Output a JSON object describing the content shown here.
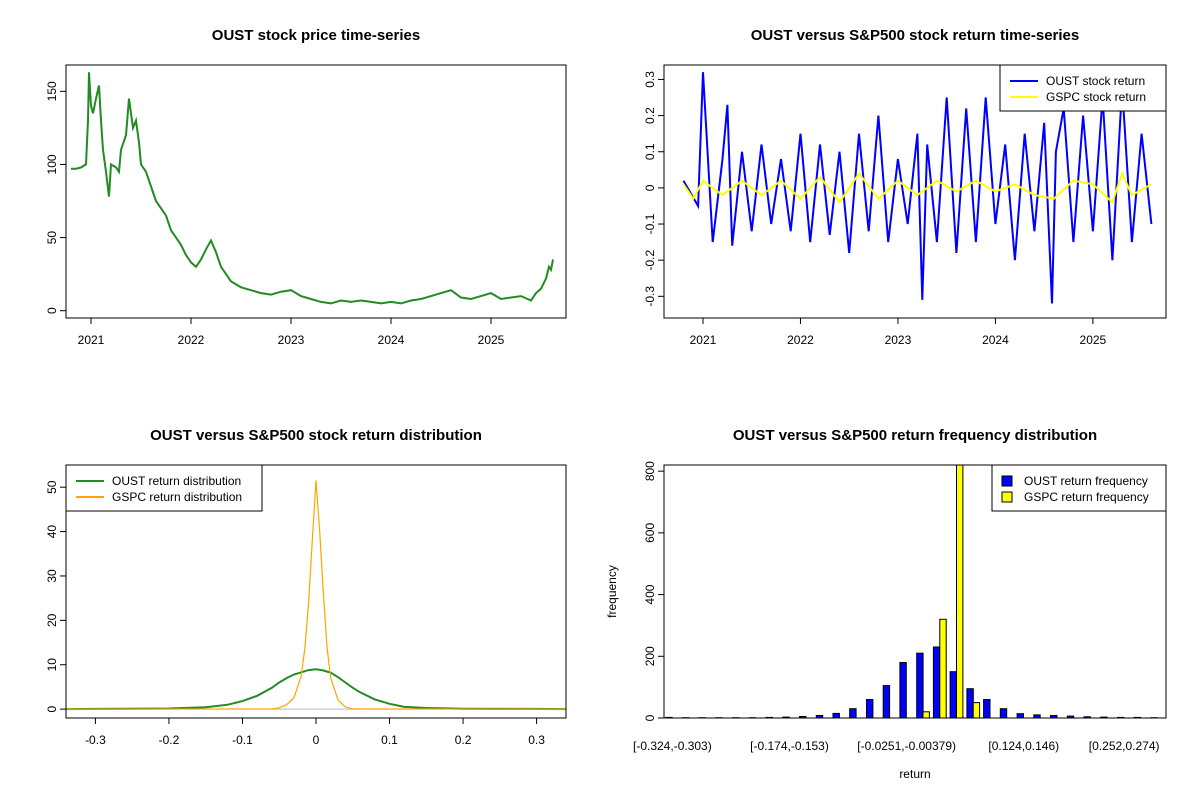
{
  "chart_data": [
    {
      "type": "line",
      "title": "OUST stock price time-series",
      "xlabel": "",
      "ylabel": "",
      "xlim": [
        2020.75,
        2025.75
      ],
      "ylim": [
        -5,
        168
      ],
      "x_ticks": [
        2021,
        2022,
        2023,
        2024,
        2025
      ],
      "y_ticks": [
        0,
        50,
        100,
        150
      ],
      "grid": false,
      "legend": "none",
      "series": [
        {
          "color": "#228B22",
          "x": [
            2020.8,
            2020.85,
            2020.9,
            2020.95,
            2020.97,
            2020.98,
            2021.0,
            2021.02,
            2021.05,
            2021.08,
            2021.1,
            2021.12,
            2021.15,
            2021.18,
            2021.2,
            2021.25,
            2021.28,
            2021.3,
            2021.35,
            2021.38,
            2021.42,
            2021.45,
            2021.48,
            2021.5,
            2021.55,
            2021.6,
            2021.65,
            2021.7,
            2021.75,
            2021.8,
            2021.85,
            2021.9,
            2021.95,
            2022.0,
            2022.05,
            2022.1,
            2022.15,
            2022.2,
            2022.25,
            2022.3,
            2022.35,
            2022.4,
            2022.45,
            2022.5,
            2022.6,
            2022.7,
            2022.8,
            2022.9,
            2023.0,
            2023.1,
            2023.2,
            2023.3,
            2023.4,
            2023.5,
            2023.6,
            2023.7,
            2023.8,
            2023.9,
            2024.0,
            2024.1,
            2024.2,
            2024.3,
            2024.4,
            2024.5,
            2024.6,
            2024.7,
            2024.8,
            2024.9,
            2025.0,
            2025.1,
            2025.2,
            2025.3,
            2025.4,
            2025.45,
            2025.5,
            2025.55,
            2025.58,
            2025.6,
            2025.62
          ],
          "y": [
            97,
            97,
            98,
            100,
            130,
            163,
            140,
            135,
            145,
            154,
            130,
            110,
            95,
            78,
            100,
            98,
            95,
            110,
            120,
            145,
            125,
            130,
            115,
            100,
            95,
            85,
            75,
            70,
            65,
            55,
            50,
            45,
            38,
            33,
            30,
            35,
            42,
            48,
            40,
            30,
            25,
            20,
            18,
            16,
            14,
            12,
            11,
            13,
            14,
            10,
            8,
            6,
            5,
            7,
            6,
            7,
            6,
            5,
            6,
            5,
            7,
            8,
            10,
            12,
            14,
            9,
            8,
            10,
            12,
            8,
            9,
            10,
            7,
            12,
            15,
            22,
            30,
            28,
            35
          ]
        }
      ]
    },
    {
      "type": "line",
      "title": "OUST versus S&P500 stock return time-series",
      "xlabel": "",
      "ylabel": "",
      "xlim": [
        2020.6,
        2025.75
      ],
      "ylim": [
        -0.36,
        0.34
      ],
      "x_ticks": [
        2021,
        2022,
        2023,
        2024,
        2025
      ],
      "y_ticks": [
        -0.3,
        -0.2,
        -0.1,
        0.0,
        0.1,
        0.2,
        0.3
      ],
      "grid": false,
      "legend": "top-right",
      "series": [
        {
          "name": "OUST stock return",
          "color": "#0000FF",
          "x": [
            2020.8,
            2020.95,
            2021.0,
            2021.1,
            2021.2,
            2021.25,
            2021.3,
            2021.4,
            2021.5,
            2021.6,
            2021.7,
            2021.8,
            2021.9,
            2022.0,
            2022.1,
            2022.2,
            2022.3,
            2022.4,
            2022.5,
            2022.6,
            2022.7,
            2022.8,
            2022.9,
            2023.0,
            2023.1,
            2023.2,
            2023.25,
            2023.3,
            2023.4,
            2023.5,
            2023.6,
            2023.7,
            2023.8,
            2023.9,
            2024.0,
            2024.1,
            2024.2,
            2024.3,
            2024.4,
            2024.5,
            2024.58,
            2024.62,
            2024.7,
            2024.8,
            2024.9,
            2025.0,
            2025.1,
            2025.2,
            2025.3,
            2025.4,
            2025.5,
            2025.6
          ],
          "y": [
            0.02,
            -0.05,
            0.32,
            -0.15,
            0.08,
            0.23,
            -0.16,
            0.1,
            -0.12,
            0.12,
            -0.1,
            0.08,
            -0.12,
            0.15,
            -0.15,
            0.12,
            -0.13,
            0.1,
            -0.18,
            0.15,
            -0.12,
            0.2,
            -0.15,
            0.08,
            -0.1,
            0.15,
            -0.31,
            0.12,
            -0.15,
            0.25,
            -0.18,
            0.22,
            -0.15,
            0.25,
            -0.1,
            0.12,
            -0.2,
            0.15,
            -0.12,
            0.18,
            -0.32,
            0.1,
            0.22,
            -0.15,
            0.2,
            -0.12,
            0.25,
            -0.2,
            0.28,
            -0.15,
            0.15,
            -0.1
          ]
        },
        {
          "name": "GSPC stock return",
          "color": "#FFFF00",
          "x": [
            2020.8,
            2020.9,
            2021.0,
            2021.2,
            2021.4,
            2021.6,
            2021.8,
            2022.0,
            2022.2,
            2022.4,
            2022.6,
            2022.8,
            2023.0,
            2023.2,
            2023.4,
            2023.6,
            2023.8,
            2024.0,
            2024.2,
            2024.4,
            2024.6,
            2024.8,
            2025.0,
            2025.2,
            2025.3,
            2025.4,
            2025.6
          ],
          "y": [
            0.01,
            -0.03,
            0.02,
            -0.02,
            0.02,
            -0.02,
            0.02,
            -0.03,
            0.03,
            -0.04,
            0.04,
            -0.03,
            0.02,
            -0.02,
            0.02,
            -0.01,
            0.02,
            -0.01,
            0.01,
            -0.02,
            -0.03,
            0.02,
            0.01,
            -0.04,
            0.04,
            -0.02,
            0.01
          ]
        }
      ]
    },
    {
      "type": "line",
      "title": "OUST versus S&P500 stock return distribution",
      "xlabel": "",
      "ylabel": "",
      "xlim": [
        -0.34,
        0.34
      ],
      "ylim": [
        -2,
        55
      ],
      "x_ticks": [
        -0.3,
        -0.2,
        -0.1,
        0.0,
        0.1,
        0.2,
        0.3
      ],
      "y_ticks": [
        0,
        10,
        20,
        30,
        40,
        50
      ],
      "grid": false,
      "legend": "top-left",
      "series": [
        {
          "name": "OUST return distribution",
          "color": "#228B22",
          "x": [
            -0.34,
            -0.3,
            -0.2,
            -0.15,
            -0.12,
            -0.1,
            -0.08,
            -0.06,
            -0.05,
            -0.04,
            -0.03,
            -0.02,
            -0.01,
            0.0,
            0.01,
            0.02,
            0.03,
            0.04,
            0.05,
            0.06,
            0.08,
            0.1,
            0.12,
            0.15,
            0.2,
            0.3,
            0.34
          ],
          "y": [
            0,
            0.05,
            0.15,
            0.4,
            1.0,
            1.8,
            3.0,
            4.8,
            6.0,
            7.0,
            7.8,
            8.3,
            8.8,
            9.0,
            8.7,
            8.2,
            7.2,
            6.0,
            4.8,
            3.8,
            2.2,
            1.2,
            0.5,
            0.25,
            0.1,
            0.05,
            0
          ]
        },
        {
          "name": "GSPC return distribution",
          "color": "#FFA500",
          "x": [
            -0.34,
            -0.06,
            -0.05,
            -0.04,
            -0.03,
            -0.02,
            -0.015,
            -0.01,
            -0.005,
            0.0,
            0.005,
            0.01,
            0.015,
            0.02,
            0.03,
            0.04,
            0.05,
            0.34
          ],
          "y": [
            0,
            0.05,
            0.3,
            1.0,
            2.5,
            7.5,
            14,
            24,
            38,
            51.5,
            40,
            26,
            14,
            7,
            2.0,
            0.5,
            0.05,
            0
          ]
        }
      ]
    },
    {
      "type": "bar",
      "title": "OUST versus S&P500 return frequency distribution",
      "xlabel": "return",
      "ylabel": "frequency",
      "ylim": [
        0,
        820
      ],
      "y_ticks": [
        0,
        200,
        400,
        600,
        800
      ],
      "x_tick_labels": [
        "[-0.324,-0.303)",
        "[-0.174,-0.153)",
        "[-0.0251,-0.00379)",
        "[0.124,0.146)",
        "[0.252,0.274)"
      ],
      "x_tick_label_positions": [
        0,
        7,
        14,
        21,
        27
      ],
      "bin_count": 30,
      "grid": false,
      "legend": "top-right",
      "series": [
        {
          "name": "OUST return frequency",
          "color": "#0000FF",
          "values": [
            2,
            1,
            1,
            1,
            1,
            1,
            2,
            3,
            5,
            8,
            15,
            30,
            60,
            105,
            180,
            210,
            230,
            150,
            95,
            60,
            30,
            14,
            10,
            8,
            6,
            4,
            3,
            2,
            2,
            1
          ]
        },
        {
          "name": "GSPC return frequency",
          "color": "#FFFF00",
          "values": [
            0,
            0,
            0,
            0,
            0,
            0,
            0,
            0,
            0,
            0,
            0,
            0,
            0,
            0,
            0,
            20,
            320,
            850,
            50,
            0,
            0,
            0,
            0,
            0,
            0,
            0,
            0,
            0,
            0,
            0
          ]
        }
      ]
    }
  ]
}
